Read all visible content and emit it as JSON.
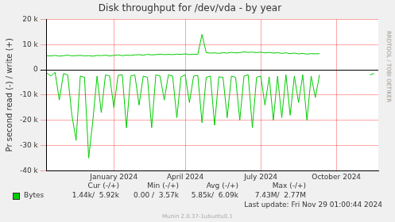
{
  "chart_data": {
    "type": "line",
    "title": "Disk throughput for /dev/vda - by year",
    "y_label": "Pr second read (-) / write (+)",
    "categories": [
      null,
      null,
      null,
      null,
      null,
      null,
      null,
      null,
      null,
      null,
      null,
      null,
      null,
      null,
      null,
      null,
      "January 2024",
      null,
      null,
      null,
      null,
      null,
      null,
      null,
      null,
      null,
      null,
      null,
      null,
      null,
      null,
      null,
      null,
      "April 2024",
      null,
      null,
      null,
      null,
      null,
      null,
      null,
      null,
      null,
      null,
      null,
      null,
      null,
      null,
      null,
      null,
      null,
      "July 2024",
      null,
      null,
      null,
      null,
      null,
      null,
      null,
      null,
      null,
      null,
      null,
      null,
      null,
      null,
      null,
      null,
      null,
      "October 2024",
      null,
      null,
      null,
      null,
      null,
      null,
      null,
      null,
      null,
      null
    ],
    "series": [
      {
        "name": "Bytes",
        "color": "#00cc00",
        "values": [
          5600,
          5500,
          5700,
          5400,
          5600,
          5800,
          5500,
          5600,
          5700,
          5500,
          5600,
          5400,
          5700,
          5600,
          5800,
          5500,
          5700,
          5900,
          5600,
          5800,
          5700,
          5900,
          6000,
          5800,
          6100,
          5900,
          6000,
          6200,
          6000,
          6100,
          6000,
          6200,
          6100,
          6300,
          6000,
          6200,
          6100,
          14000,
          6800,
          6600,
          6700,
          6500,
          6800,
          6600,
          6900,
          6700,
          6800,
          7100,
          6900,
          7000,
          6800,
          7000,
          6700,
          6900,
          6600,
          6800,
          6500,
          6700,
          6400,
          6600,
          6300,
          6500,
          6200,
          6400,
          6300,
          6400,
          null,
          null,
          null,
          null,
          null,
          null,
          null,
          null,
          null,
          null,
          null,
          null,
          null,
          null
        ],
        "read_values": [
          -1200,
          -2500,
          -1000,
          -12000,
          -1500,
          -2000,
          -18000,
          -28000,
          -2500,
          -3000,
          -35000,
          -20000,
          -2500,
          -17000,
          -2000,
          -2500,
          -15000,
          -2200,
          -2000,
          -23000,
          -2500,
          -2000,
          -14000,
          -2500,
          -3000,
          -23000,
          -2000,
          -2500,
          -12000,
          -2000,
          -2500,
          -19000,
          -2800,
          -2000,
          -13000,
          -2500,
          -2200,
          -21000,
          -3000,
          -2500,
          -22000,
          -2800,
          -3000,
          -19000,
          -2500,
          -3000,
          -20000,
          -2500,
          -2000,
          -23000,
          -3000,
          -2500,
          -14000,
          -2800,
          -20000,
          -2500,
          -19000,
          -2000,
          -18000,
          -2500,
          -13000,
          -2000,
          -20000,
          -2500,
          -11000,
          -2000,
          null,
          null,
          null,
          null,
          null,
          null,
          null,
          null,
          null,
          null,
          null,
          -2000,
          -1500,
          null
        ]
      }
    ],
    "ylim": [
      -40000,
      20000
    ],
    "yticks": [
      {
        "value": -40000,
        "label": "-40 k"
      },
      {
        "value": -30000,
        "label": "-30 k"
      },
      {
        "value": -20000,
        "label": "-20 k"
      },
      {
        "value": -10000,
        "label": "-10 k"
      },
      0,
      {
        "value": 10000,
        "label": "10 k"
      },
      {
        "value": 20000,
        "label": "20 k"
      }
    ],
    "grid": true,
    "summary": {
      "columns": [
        "Cur (-/+)",
        "Min (-/+)",
        "Avg (-/+)",
        "Max (-/+)"
      ],
      "cells": [
        "1.44k/  5.92k",
        "0.00 /  3.57k",
        "5.85k/  6.09k",
        "7.43M/  2.77M"
      ]
    },
    "last_update": "Last update: Fri Nov 29 01:00:44 2024",
    "footer": "Munin 2.0.37-1ubuntu0.1",
    "side_note": "RRDTOOL / TOBI OETIKER"
  }
}
